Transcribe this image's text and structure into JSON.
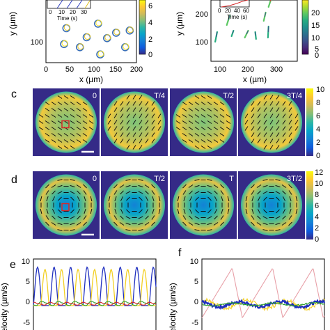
{
  "colors": {
    "viridis": [
      "#440154",
      "#472c7a",
      "#3b518b",
      "#2c718e",
      "#21908d",
      "#27ad81",
      "#5cc863",
      "#aadc32",
      "#fde725"
    ],
    "parula": [
      "#352a87",
      "#0f5cdd",
      "#1481d6",
      "#06a4ca",
      "#2eb7a4",
      "#87bf77",
      "#d1bb59",
      "#fec832",
      "#f9fb0e"
    ],
    "series": [
      "#1f2fbf",
      "#f2d024",
      "#2ca02c",
      "#d62728",
      "#e8a0a8",
      "#2f6fb0"
    ]
  },
  "panels": {
    "a": {
      "xlabel": "x (µm)",
      "ylabel": "y (µm)",
      "xticks": [
        "0",
        "50",
        "100",
        "150",
        "200"
      ],
      "yticks": [
        "100"
      ],
      "cbar_ticks": [
        "6",
        "4",
        "2",
        "0"
      ],
      "inset_xlabel": "Time (s)",
      "inset_xticks": [
        "0",
        "10",
        "20",
        "30"
      ]
    },
    "b": {
      "xlabel": "x (µm)",
      "ylabel": "y (µm)",
      "xticks": [
        "100",
        "200",
        "300"
      ],
      "yticks": [
        "200",
        "100"
      ],
      "cbar_ticks": [
        "20",
        "15",
        "10",
        "5",
        "0"
      ],
      "inset_xlabel": "Time (s)",
      "inset_xticks": [
        "0",
        "20",
        "40",
        "60"
      ]
    },
    "c": {
      "label": "c",
      "frames": [
        "0",
        "T/4",
        "T/2",
        "3T/4"
      ],
      "cbar_ticks": [
        "10",
        "8",
        "6",
        "4",
        "2",
        "0"
      ]
    },
    "d": {
      "label": "d",
      "frames": [
        "0",
        "T/2",
        "T",
        "3T/2"
      ],
      "cbar_ticks": [
        "12",
        "10",
        "8",
        "6",
        "4",
        "2",
        "0"
      ]
    },
    "e": {
      "label": "e",
      "ylabel": "elocity (µm/s)",
      "yticks": [
        "10",
        "5",
        "0",
        "-5"
      ]
    },
    "f": {
      "label": "f",
      "ylabel": "elocity (µm/s)",
      "yticks": [
        "10",
        "5",
        "0",
        "-5"
      ]
    }
  },
  "chart_data": [
    {
      "type": "scatter",
      "panel": "a",
      "xlabel": "x (µm)",
      "ylabel": "y (µm)",
      "points": [
        [
          40,
          95
        ],
        [
          75,
          88
        ],
        [
          90,
          110
        ],
        [
          120,
          72
        ],
        [
          135,
          108
        ],
        [
          155,
          120
        ],
        [
          175,
          88
        ],
        [
          185,
          125
        ],
        [
          45,
          130
        ],
        [
          115,
          140
        ]
      ]
    },
    {
      "type": "line",
      "panel": "b",
      "xlabel": "x (µm)",
      "ylabel": "y (µm)",
      "tracks": [
        [
          [
            65,
            150
          ],
          [
            60,
            115
          ]
        ],
        [
          [
            90,
            135
          ],
          [
            83,
            100
          ]
        ],
        [
          [
            135,
            195
          ],
          [
            124,
            160
          ]
        ],
        [
          [
            148,
            140
          ],
          [
            141,
            120
          ]
        ],
        [
          [
            200,
            140
          ],
          [
            188,
            115
          ]
        ],
        [
          [
            225,
            135
          ],
          [
            228,
            110
          ]
        ],
        [
          [
            262,
            205
          ],
          [
            255,
            175
          ]
        ],
        [
          [
            272,
            155
          ],
          [
            270,
            115
          ]
        ],
        [
          [
            285,
            265
          ],
          [
            272,
            225
          ]
        ]
      ]
    },
    {
      "type": "heatmap",
      "panel": "c",
      "frames": [
        "0",
        "T/4",
        "T/2",
        "3T/4"
      ],
      "cbar_range": [
        0,
        10
      ]
    },
    {
      "type": "heatmap",
      "panel": "d",
      "frames": [
        "0",
        "T/2",
        "T",
        "3T/2"
      ],
      "cbar_range": [
        0,
        12
      ]
    },
    {
      "type": "line",
      "panel": "e",
      "ylabel": "elocity (µm/s)",
      "ylim": [
        -6,
        10
      ],
      "series": [
        {
          "peak": 8.5,
          "period_frac": 0.135,
          "phase": 0.0
        },
        {
          "peak": 8.0,
          "period_frac": 0.135,
          "phase": 0.45
        },
        {
          "peak": 0.6,
          "period_frac": 0.135,
          "phase": 0.2
        },
        {
          "peak": 0.4,
          "period_frac": 0.135,
          "phase": 0.7
        }
      ]
    },
    {
      "type": "line",
      "panel": "f",
      "ylabel": "elocity (µm/s)",
      "ylim": [
        -6,
        10
      ],
      "series": [
        {
          "peak": 8.0,
          "period_frac": 0.33,
          "kind": "sawtooth"
        },
        {
          "peak": 1.5,
          "period_frac": 0.33,
          "kind": "noise"
        },
        {
          "peak": 1.0,
          "period_frac": 0.33,
          "kind": "noise"
        },
        {
          "peak": 0.5,
          "period_frac": 0.33,
          "kind": "noise"
        }
      ]
    }
  ]
}
